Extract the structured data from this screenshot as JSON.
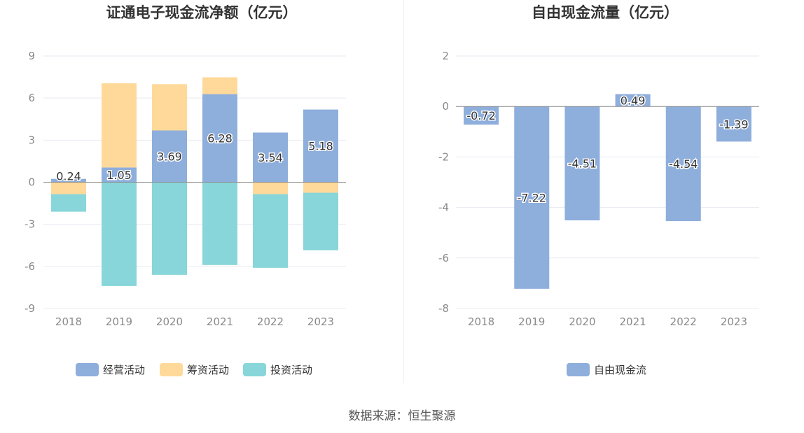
{
  "colors": {
    "operating": "#8eaedc",
    "financing": "#ffd99a",
    "investing": "#88d6d9",
    "fcf": "#8eaedc"
  },
  "chart_data": [
    {
      "type": "bar",
      "stacked": true,
      "title": "证通电子现金流净额（亿元）",
      "categories": [
        "2018",
        "2019",
        "2020",
        "2021",
        "2022",
        "2023"
      ],
      "ylim": [
        -9,
        9
      ],
      "yticks": [
        "9",
        "6",
        "3",
        "0",
        "-3",
        "-6",
        "-9"
      ],
      "grid": true,
      "legend_position": "bottom-center",
      "series": [
        {
          "name": "经营活动",
          "values": [
            0.24,
            1.05,
            3.69,
            6.28,
            3.54,
            5.18
          ],
          "labels": [
            "0.24",
            "1.05",
            "3.69",
            "6.28",
            "3.54",
            "5.18"
          ]
        },
        {
          "name": "筹资活动",
          "values": [
            -0.85,
            6.0,
            3.3,
            1.2,
            -0.85,
            -0.75
          ]
        },
        {
          "name": "投资活动",
          "values": [
            -1.25,
            -7.4,
            -6.6,
            -5.9,
            -5.25,
            -4.1
          ]
        }
      ]
    },
    {
      "type": "bar",
      "title": "自由现金流量（亿元）",
      "categories": [
        "2018",
        "2019",
        "2020",
        "2021",
        "2022",
        "2023"
      ],
      "ylim": [
        -8,
        2
      ],
      "yticks": [
        "2",
        "0",
        "-2",
        "-4",
        "-6",
        "-8"
      ],
      "grid": true,
      "legend_position": "bottom-center",
      "series": [
        {
          "name": "自由现金流",
          "values": [
            -0.72,
            -7.22,
            -4.51,
            0.49,
            -4.54,
            -1.39
          ],
          "labels": [
            "-0.72",
            "-7.22",
            "-4.51",
            "0.49",
            "-4.54",
            "-1.39"
          ]
        }
      ]
    }
  ],
  "footer": {
    "source": "数据来源：恒生聚源"
  }
}
